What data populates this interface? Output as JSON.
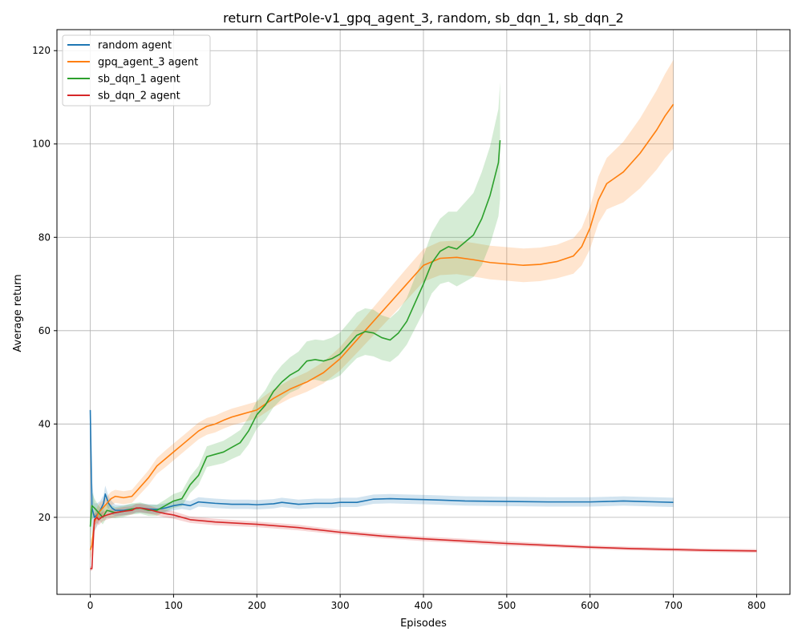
{
  "chart_data": {
    "type": "line",
    "title": "return CartPole-v1_gpq_agent_3, random, sb_dqn_1, sb_dqn_2",
    "xlabel": "Episodes",
    "ylabel": "Average return",
    "xlim": [
      -40,
      840
    ],
    "ylim": [
      3.5,
      124.5
    ],
    "xticks": [
      0,
      100,
      200,
      300,
      400,
      500,
      600,
      700,
      800
    ],
    "yticks": [
      20,
      40,
      60,
      80,
      100,
      120
    ],
    "grid": true,
    "legend_position": "top-left",
    "series": [
      {
        "name": "random agent",
        "color": "#1f77b4",
        "x": [
          0,
          2,
          5,
          8,
          12,
          16,
          18,
          22,
          26,
          30,
          40,
          50,
          60,
          70,
          80,
          90,
          100,
          110,
          120,
          130,
          150,
          170,
          190,
          200,
          220,
          230,
          250,
          270,
          290,
          300,
          320,
          340,
          360,
          380,
          400,
          420,
          450,
          500,
          550,
          600,
          620,
          640,
          660,
          680,
          700
        ],
        "y": [
          43,
          22,
          20,
          20.5,
          21.5,
          23,
          25,
          23,
          22,
          21.5,
          21.5,
          21.8,
          22,
          21.8,
          21.7,
          22,
          22.5,
          22.8,
          22.5,
          23.3,
          23,
          22.8,
          22.8,
          22.7,
          22.9,
          23.2,
          22.8,
          23,
          23,
          23.2,
          23.2,
          23.9,
          24,
          23.9,
          23.8,
          23.7,
          23.5,
          23.4,
          23.3,
          23.3,
          23.4,
          23.5,
          23.4,
          23.3,
          23.2
        ],
        "band": [
          0,
          6,
          3,
          2.5,
          2,
          1.8,
          1.8,
          1.5,
          1.4,
          1.2,
          1.1,
          1,
          1,
          1,
          1,
          1,
          1,
          1,
          1,
          1,
          1,
          1,
          1,
          1,
          1,
          1,
          1,
          1,
          1,
          1,
          1,
          1,
          1,
          1,
          1,
          1,
          1,
          1,
          1,
          1,
          1,
          1,
          1,
          1,
          1
        ]
      },
      {
        "name": "gpq_agent_3 agent",
        "color": "#ff7f0e",
        "x": [
          0,
          2,
          5,
          10,
          15,
          20,
          25,
          30,
          40,
          50,
          60,
          70,
          80,
          90,
          100,
          110,
          120,
          130,
          140,
          150,
          160,
          170,
          180,
          190,
          200,
          220,
          240,
          260,
          280,
          300,
          320,
          340,
          360,
          380,
          400,
          420,
          440,
          460,
          480,
          500,
          520,
          540,
          560,
          580,
          590,
          600,
          610,
          620,
          640,
          660,
          680,
          690,
          700
        ],
        "y": [
          13,
          14,
          19,
          21,
          22,
          23,
          24,
          24.5,
          24.2,
          24.5,
          26.5,
          28.5,
          31,
          32.5,
          34,
          35.5,
          37,
          38.5,
          39.5,
          40,
          40.8,
          41.5,
          42,
          42.5,
          43,
          45.5,
          47.5,
          49,
          51,
          54,
          58,
          62,
          66,
          70,
          74,
          75.5,
          75.7,
          75.2,
          74.6,
          74.3,
          74,
          74.2,
          74.8,
          76,
          78,
          82,
          88,
          91.5,
          94,
          98,
          103,
          106,
          108.5
        ],
        "band": [
          2,
          2,
          2,
          1.8,
          1.6,
          1.5,
          1.5,
          1.4,
          1.4,
          1.4,
          1.5,
          1.6,
          1.7,
          1.8,
          1.8,
          1.8,
          1.8,
          1.8,
          1.8,
          1.8,
          1.8,
          1.8,
          1.8,
          1.8,
          1.8,
          1.9,
          2,
          2.1,
          2.3,
          2.5,
          2.8,
          3,
          3.2,
          3.4,
          3.5,
          3.6,
          3.6,
          3.6,
          3.6,
          3.6,
          3.6,
          3.6,
          3.6,
          3.8,
          4,
          4.5,
          5,
          5.5,
          6.5,
          7.5,
          8.5,
          9,
          9.5
        ]
      },
      {
        "name": "sb_dqn_1 agent",
        "color": "#2ca02c",
        "x": [
          0,
          2,
          5,
          10,
          15,
          20,
          30,
          40,
          50,
          60,
          70,
          80,
          90,
          100,
          110,
          120,
          130,
          140,
          150,
          160,
          170,
          180,
          190,
          200,
          210,
          220,
          230,
          240,
          250,
          260,
          270,
          280,
          290,
          300,
          310,
          320,
          330,
          340,
          350,
          360,
          370,
          380,
          390,
          400,
          410,
          420,
          430,
          440,
          450,
          460,
          470,
          480,
          490,
          492
        ],
        "y": [
          18,
          22.5,
          22,
          21,
          20,
          21.5,
          21,
          21.3,
          21.8,
          22,
          21.5,
          21.5,
          22.5,
          23.5,
          24,
          27,
          29,
          33,
          33.5,
          34,
          35,
          36,
          38.5,
          42,
          44,
          47,
          49,
          50.5,
          51.5,
          53.5,
          53.8,
          53.5,
          54,
          55,
          57,
          59,
          59.8,
          59.5,
          58.5,
          58,
          59.5,
          62,
          66,
          70,
          74.5,
          77,
          78,
          77.5,
          79,
          80.5,
          84,
          89,
          96,
          100.8
        ],
        "band": [
          4,
          3,
          2,
          1.5,
          1.5,
          1.5,
          1.2,
          1.2,
          1.2,
          1.2,
          1.2,
          1.2,
          1.3,
          1.5,
          1.6,
          1.8,
          2,
          2.2,
          2.3,
          2.4,
          2.5,
          2.7,
          2.9,
          3,
          3.2,
          3.4,
          3.6,
          3.8,
          4,
          4.2,
          4.3,
          4.4,
          4.5,
          4.6,
          4.7,
          4.9,
          5,
          5,
          4.8,
          4.7,
          4.8,
          5,
          5.5,
          6,
          6.5,
          7,
          7.5,
          8,
          8.5,
          9,
          10,
          10.5,
          11.5,
          12.5
        ]
      },
      {
        "name": "sb_dqn_2 agent",
        "color": "#d62728",
        "x": [
          0,
          2,
          3,
          5,
          8,
          10,
          15,
          20,
          30,
          40,
          50,
          55,
          60,
          70,
          80,
          90,
          100,
          120,
          150,
          200,
          250,
          300,
          350,
          400,
          450,
          500,
          550,
          600,
          650,
          700,
          750,
          800
        ],
        "y": [
          9,
          9,
          13,
          19.5,
          20,
          19.5,
          20.2,
          20.5,
          21,
          21.3,
          21.5,
          22,
          22,
          21.7,
          21.2,
          20.8,
          20.5,
          19.5,
          19,
          18.5,
          17.8,
          16.8,
          16,
          15.4,
          14.9,
          14.4,
          14,
          13.6,
          13.3,
          13.1,
          12.9,
          12.8
        ],
        "band": [
          0.5,
          0.5,
          1,
          1.2,
          1.2,
          1.2,
          1,
          1,
          0.9,
          0.9,
          0.9,
          0.9,
          0.9,
          0.9,
          0.8,
          0.8,
          0.8,
          0.7,
          0.7,
          0.6,
          0.6,
          0.5,
          0.5,
          0.5,
          0.5,
          0.5,
          0.4,
          0.4,
          0.4,
          0.4,
          0.4,
          0.4
        ]
      }
    ]
  }
}
